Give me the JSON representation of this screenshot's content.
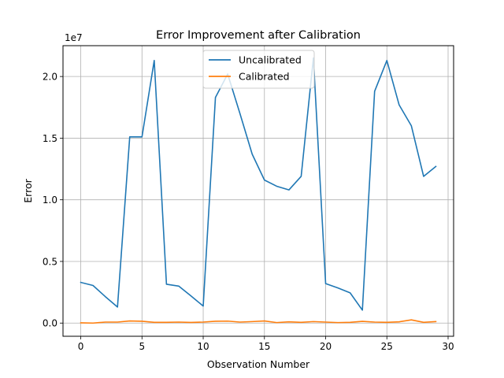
{
  "chart_data": {
    "type": "line",
    "title": "Error Improvement after Calibration",
    "xlabel": "Observation Number",
    "ylabel": "Error",
    "y_offset_text": "1e7",
    "xlim": [
      -1.45,
      30.45
    ],
    "ylim": [
      -1070000.0,
      22500000.0
    ],
    "x_ticks": [
      0,
      5,
      10,
      15,
      20,
      25,
      30
    ],
    "x_tick_labels": [
      "0",
      "5",
      "10",
      "15",
      "20",
      "25",
      "30"
    ],
    "y_ticks": [
      0,
      5000000,
      10000000,
      15000000,
      20000000
    ],
    "y_tick_labels": [
      "0.0",
      "0.5",
      "1.0",
      "1.5",
      "2.0"
    ],
    "grid": true,
    "legend_position": "top-center",
    "x": [
      0,
      1,
      2,
      3,
      4,
      5,
      6,
      7,
      8,
      9,
      10,
      11,
      12,
      13,
      14,
      15,
      16,
      17,
      18,
      19,
      20,
      21,
      22,
      23,
      24,
      25,
      26,
      27,
      28,
      29
    ],
    "series": [
      {
        "name": "Uncalibrated",
        "color": "#1f77b4",
        "values": [
          3300000,
          3050000,
          2150000,
          1300000,
          15100000,
          15100000,
          21300000,
          3150000,
          3000000,
          2200000,
          1380000,
          18300000,
          20200000,
          17000000,
          13700000,
          11600000,
          11100000,
          10800000,
          11900000,
          21500000,
          3200000,
          2850000,
          2450000,
          1050000,
          18800000,
          21300000,
          17700000,
          16000000,
          11900000,
          12700000
        ]
      },
      {
        "name": "Calibrated",
        "color": "#ff7f0e",
        "values": [
          20000,
          0,
          80000,
          80000,
          170000,
          150000,
          60000,
          60000,
          80000,
          50000,
          80000,
          150000,
          160000,
          80000,
          120000,
          170000,
          40000,
          100000,
          60000,
          120000,
          80000,
          40000,
          60000,
          140000,
          80000,
          60000,
          100000,
          260000,
          60000,
          120000
        ]
      }
    ]
  }
}
